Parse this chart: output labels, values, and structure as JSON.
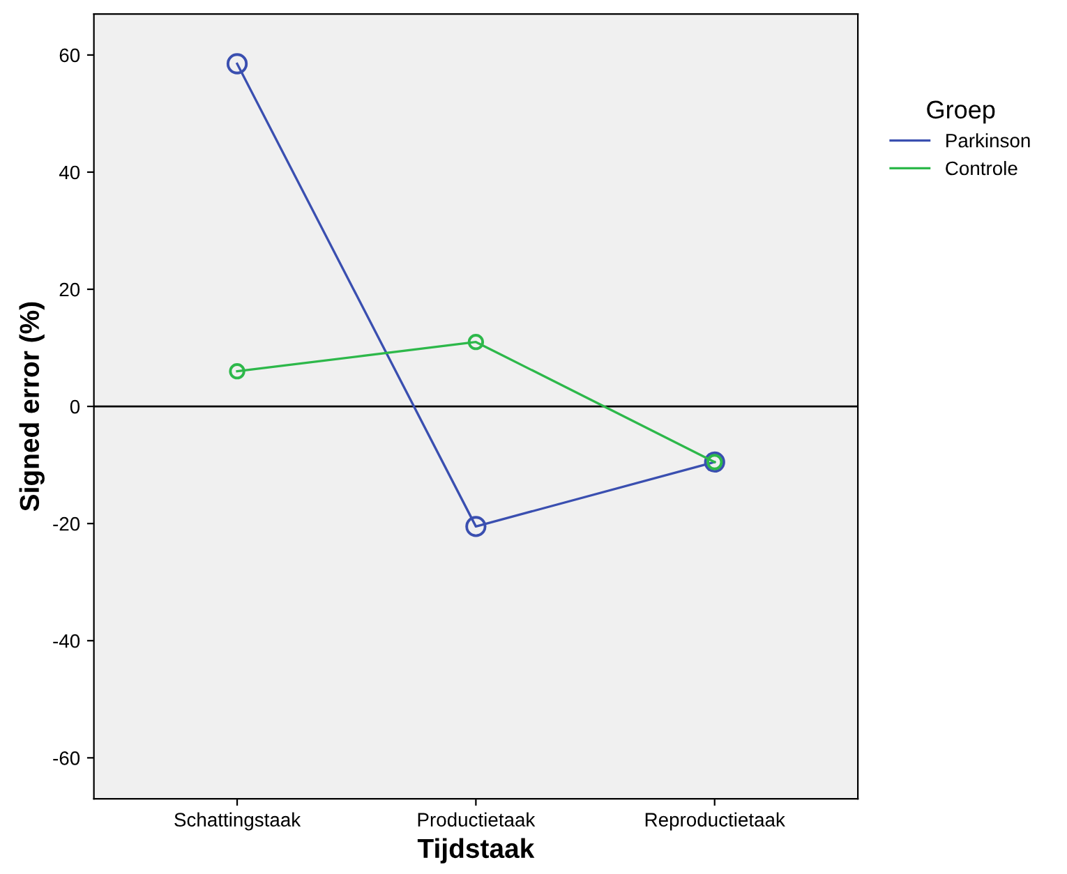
{
  "chart_data": {
    "type": "line",
    "xlabel": "Tijdstaak",
    "ylabel": "Signed error (%)",
    "legend_title": "Groep",
    "categories": [
      "Schattingstaak",
      "Productietaak",
      "Reproductietaak"
    ],
    "series": [
      {
        "name": "Parkinson",
        "color": "#3a4fb0",
        "values": [
          58.5,
          -20.5,
          -9.5
        ]
      },
      {
        "name": "Controle",
        "color": "#2db84a",
        "values": [
          6,
          11,
          -9.5
        ]
      }
    ],
    "ylim": [
      -67,
      67
    ],
    "yticks": [
      -60,
      -40,
      -20,
      0,
      20,
      40,
      60
    ],
    "ref_lines": [
      {
        "axis": "y",
        "value": 0,
        "color": "#000000"
      }
    ],
    "marker": "circle",
    "legend": "right",
    "grid": false
  }
}
